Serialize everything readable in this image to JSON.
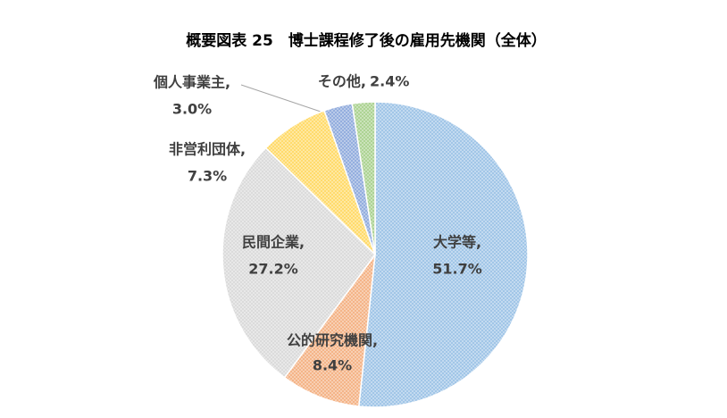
{
  "chart_data": {
    "type": "pie",
    "title": "概要図表 25　博士課程修了後の雇用先機関（全体）",
    "categories": [
      "大学等,",
      "公的研究機関,",
      "民間企業,",
      "非営利団体,",
      "個人事業主,",
      "その他,"
    ],
    "values": [
      51.7,
      8.4,
      27.2,
      7.3,
      3.0,
      2.4
    ],
    "value_labels": [
      "51.7%",
      "8.4%",
      "27.2%",
      "7.3%",
      "3.0%",
      "2.4%"
    ],
    "colors": [
      "#9dc3e6",
      "#f4b183",
      "#d9d9d9",
      "#ffd966",
      "#8faadc",
      "#a9d18e"
    ]
  }
}
